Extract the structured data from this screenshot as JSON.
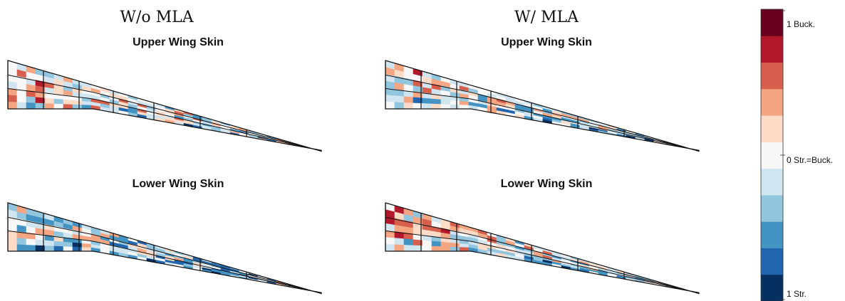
{
  "titles": {
    "left": "W/o MLA",
    "right": "W/ MLA"
  },
  "panels": [
    {
      "id": "left-upper",
      "title": "Upper Wing Skin",
      "seed": 11,
      "bias": 0.62
    },
    {
      "id": "left-lower",
      "title": "Lower Wing Skin",
      "seed": 23,
      "bias": 0.5
    },
    {
      "id": "right-upper",
      "title": "Upper Wing Skin",
      "seed": 37,
      "bias": 0.58
    },
    {
      "id": "right-lower",
      "title": "Lower Wing Skin",
      "seed": 41,
      "bias": 0.62
    }
  ],
  "colorbar": {
    "colors": [
      "#053061",
      "#2166ac",
      "#4393c3",
      "#92c5de",
      "#d1e5f0",
      "#f7f7f7",
      "#fddbc7",
      "#f4a582",
      "#d6604d",
      "#b2182b",
      "#67001f"
    ],
    "labels": {
      "top": "1 Buck.",
      "middle": "0 Str.=Buck.",
      "bottom": "1 Str."
    }
  }
}
